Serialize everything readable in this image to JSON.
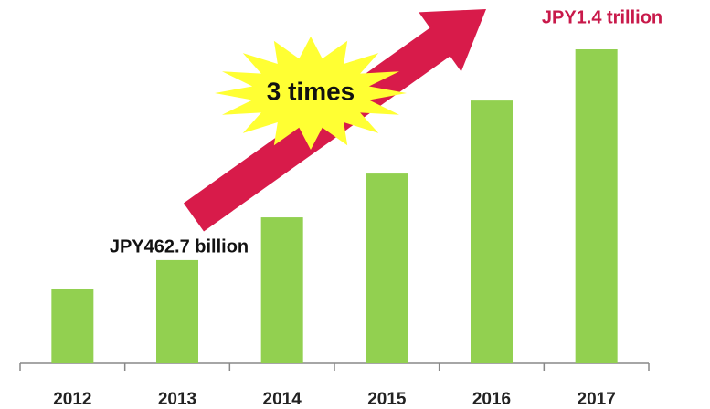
{
  "chart_data": {
    "type": "bar",
    "categories": [
      "2012",
      "2013",
      "2014",
      "2015",
      "2016",
      "2017"
    ],
    "values": [
      462.7,
      577,
      744,
      915,
      1200,
      1400
    ],
    "value_labels": [
      "JPY462.7 billion",
      null,
      null,
      null,
      null,
      "JPY1.4 trillion"
    ],
    "annotation": "3 times",
    "color": "#92d050",
    "ylim": [
      174,
      1400
    ]
  }
}
